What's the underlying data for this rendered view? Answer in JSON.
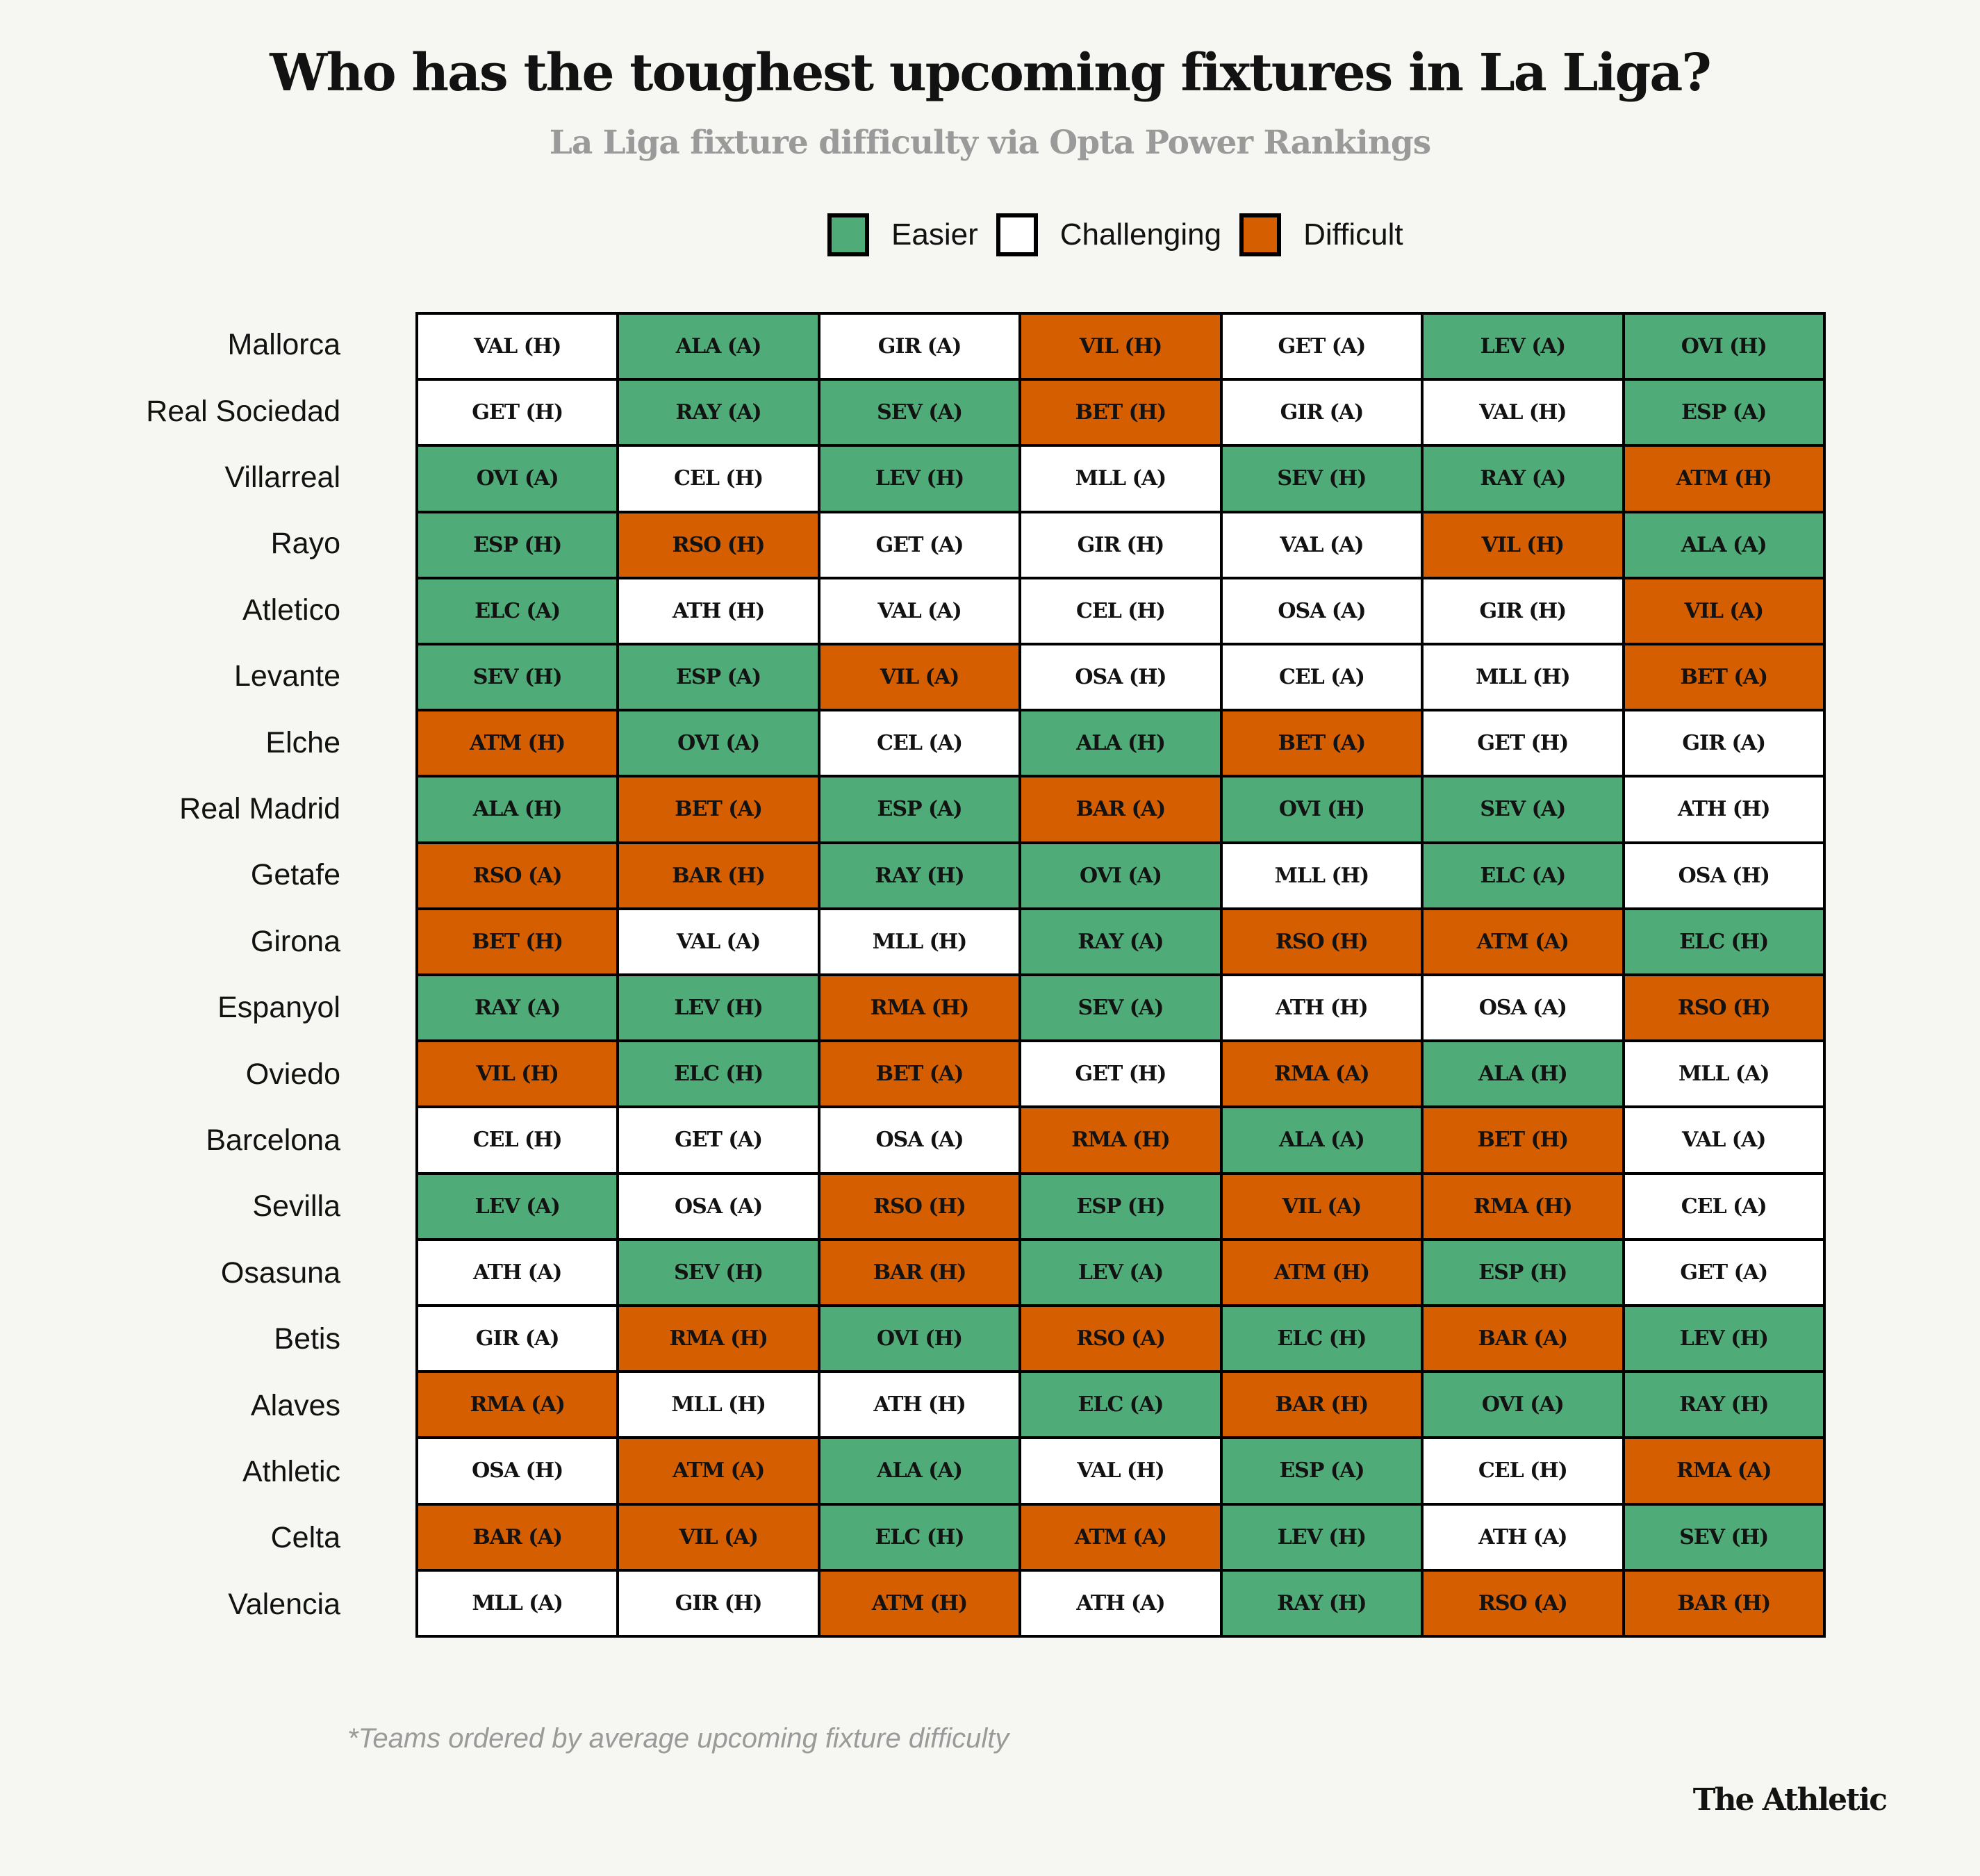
{
  "title": "Who has the toughest upcoming fixtures in La Liga?",
  "subtitle": "La Liga fixture difficulty via Opta Power Rankings",
  "legend": [
    {
      "key": "easy",
      "label": "Easier",
      "color": "#4fac78"
    },
    {
      "key": "chal",
      "label": "Challenging",
      "color": "#ffffff"
    },
    {
      "key": "diff",
      "label": "Difficult",
      "color": "#d45e00"
    }
  ],
  "footnote": "*Teams ordered by average upcoming fixture difficulty",
  "brand": "The Athletic",
  "chart_data": {
    "type": "table",
    "title": "Who has the toughest upcoming fixtures in La Liga?",
    "subtitle": "La Liga fixture difficulty via Opta Power Rankings",
    "legend_placement": "top-center",
    "difficulty_levels": {
      "easy": "Easier",
      "chal": "Challenging",
      "diff": "Difficult"
    },
    "rows": [
      {
        "team": "Mallorca",
        "fixtures": [
          [
            "VAL (H)",
            "chal"
          ],
          [
            "ALA (A)",
            "easy"
          ],
          [
            "GIR (A)",
            "chal"
          ],
          [
            "VIL (H)",
            "diff"
          ],
          [
            "GET (A)",
            "chal"
          ],
          [
            "LEV (A)",
            "easy"
          ],
          [
            "OVI (H)",
            "easy"
          ]
        ]
      },
      {
        "team": "Real Sociedad",
        "fixtures": [
          [
            "GET (H)",
            "chal"
          ],
          [
            "RAY (A)",
            "easy"
          ],
          [
            "SEV (A)",
            "easy"
          ],
          [
            "BET (H)",
            "diff"
          ],
          [
            "GIR (A)",
            "chal"
          ],
          [
            "VAL (H)",
            "chal"
          ],
          [
            "ESP (A)",
            "easy"
          ]
        ]
      },
      {
        "team": "Villarreal",
        "fixtures": [
          [
            "OVI (A)",
            "easy"
          ],
          [
            "CEL (H)",
            "chal"
          ],
          [
            "LEV (H)",
            "easy"
          ],
          [
            "MLL (A)",
            "chal"
          ],
          [
            "SEV (H)",
            "easy"
          ],
          [
            "RAY (A)",
            "easy"
          ],
          [
            "ATM (H)",
            "diff"
          ]
        ]
      },
      {
        "team": "Rayo",
        "fixtures": [
          [
            "ESP (H)",
            "easy"
          ],
          [
            "RSO (H)",
            "diff"
          ],
          [
            "GET (A)",
            "chal"
          ],
          [
            "GIR (H)",
            "chal"
          ],
          [
            "VAL (A)",
            "chal"
          ],
          [
            "VIL (H)",
            "diff"
          ],
          [
            "ALA (A)",
            "easy"
          ]
        ]
      },
      {
        "team": "Atletico",
        "fixtures": [
          [
            "ELC (A)",
            "easy"
          ],
          [
            "ATH (H)",
            "chal"
          ],
          [
            "VAL (A)",
            "chal"
          ],
          [
            "CEL (H)",
            "chal"
          ],
          [
            "OSA (A)",
            "chal"
          ],
          [
            "GIR (H)",
            "chal"
          ],
          [
            "VIL (A)",
            "diff"
          ]
        ]
      },
      {
        "team": "Levante",
        "fixtures": [
          [
            "SEV (H)",
            "easy"
          ],
          [
            "ESP (A)",
            "easy"
          ],
          [
            "VIL (A)",
            "diff"
          ],
          [
            "OSA (H)",
            "chal"
          ],
          [
            "CEL (A)",
            "chal"
          ],
          [
            "MLL (H)",
            "chal"
          ],
          [
            "BET (A)",
            "diff"
          ]
        ]
      },
      {
        "team": "Elche",
        "fixtures": [
          [
            "ATM (H)",
            "diff"
          ],
          [
            "OVI (A)",
            "easy"
          ],
          [
            "CEL (A)",
            "chal"
          ],
          [
            "ALA (H)",
            "easy"
          ],
          [
            "BET (A)",
            "diff"
          ],
          [
            "GET (H)",
            "chal"
          ],
          [
            "GIR (A)",
            "chal"
          ]
        ]
      },
      {
        "team": "Real Madrid",
        "fixtures": [
          [
            "ALA (H)",
            "easy"
          ],
          [
            "BET (A)",
            "diff"
          ],
          [
            "ESP (A)",
            "easy"
          ],
          [
            "BAR (A)",
            "diff"
          ],
          [
            "OVI (H)",
            "easy"
          ],
          [
            "SEV (A)",
            "easy"
          ],
          [
            "ATH (H)",
            "chal"
          ]
        ]
      },
      {
        "team": "Getafe",
        "fixtures": [
          [
            "RSO (A)",
            "diff"
          ],
          [
            "BAR (H)",
            "diff"
          ],
          [
            "RAY (H)",
            "easy"
          ],
          [
            "OVI (A)",
            "easy"
          ],
          [
            "MLL (H)",
            "chal"
          ],
          [
            "ELC (A)",
            "easy"
          ],
          [
            "OSA (H)",
            "chal"
          ]
        ]
      },
      {
        "team": "Girona",
        "fixtures": [
          [
            "BET (H)",
            "diff"
          ],
          [
            "VAL (A)",
            "chal"
          ],
          [
            "MLL (H)",
            "chal"
          ],
          [
            "RAY (A)",
            "easy"
          ],
          [
            "RSO (H)",
            "diff"
          ],
          [
            "ATM (A)",
            "diff"
          ],
          [
            "ELC (H)",
            "easy"
          ]
        ]
      },
      {
        "team": "Espanyol",
        "fixtures": [
          [
            "RAY (A)",
            "easy"
          ],
          [
            "LEV (H)",
            "easy"
          ],
          [
            "RMA (H)",
            "diff"
          ],
          [
            "SEV (A)",
            "easy"
          ],
          [
            "ATH (H)",
            "chal"
          ],
          [
            "OSA (A)",
            "chal"
          ],
          [
            "RSO (H)",
            "diff"
          ]
        ]
      },
      {
        "team": "Oviedo",
        "fixtures": [
          [
            "VIL (H)",
            "diff"
          ],
          [
            "ELC (H)",
            "easy"
          ],
          [
            "BET (A)",
            "diff"
          ],
          [
            "GET (H)",
            "chal"
          ],
          [
            "RMA (A)",
            "diff"
          ],
          [
            "ALA (H)",
            "easy"
          ],
          [
            "MLL (A)",
            "chal"
          ]
        ]
      },
      {
        "team": "Barcelona",
        "fixtures": [
          [
            "CEL (H)",
            "chal"
          ],
          [
            "GET (A)",
            "chal"
          ],
          [
            "OSA (A)",
            "chal"
          ],
          [
            "RMA (H)",
            "diff"
          ],
          [
            "ALA (A)",
            "easy"
          ],
          [
            "BET (H)",
            "diff"
          ],
          [
            "VAL (A)",
            "chal"
          ]
        ]
      },
      {
        "team": "Sevilla",
        "fixtures": [
          [
            "LEV (A)",
            "easy"
          ],
          [
            "OSA (A)",
            "chal"
          ],
          [
            "RSO (H)",
            "diff"
          ],
          [
            "ESP (H)",
            "easy"
          ],
          [
            "VIL (A)",
            "diff"
          ],
          [
            "RMA (H)",
            "diff"
          ],
          [
            "CEL (A)",
            "chal"
          ]
        ]
      },
      {
        "team": "Osasuna",
        "fixtures": [
          [
            "ATH (A)",
            "chal"
          ],
          [
            "SEV (H)",
            "easy"
          ],
          [
            "BAR (H)",
            "diff"
          ],
          [
            "LEV (A)",
            "easy"
          ],
          [
            "ATM (H)",
            "diff"
          ],
          [
            "ESP (H)",
            "easy"
          ],
          [
            "GET (A)",
            "chal"
          ]
        ]
      },
      {
        "team": "Betis",
        "fixtures": [
          [
            "GIR (A)",
            "chal"
          ],
          [
            "RMA (H)",
            "diff"
          ],
          [
            "OVI (H)",
            "easy"
          ],
          [
            "RSO (A)",
            "diff"
          ],
          [
            "ELC (H)",
            "easy"
          ],
          [
            "BAR (A)",
            "diff"
          ],
          [
            "LEV (H)",
            "easy"
          ]
        ]
      },
      {
        "team": "Alaves",
        "fixtures": [
          [
            "RMA (A)",
            "diff"
          ],
          [
            "MLL (H)",
            "chal"
          ],
          [
            "ATH (H)",
            "chal"
          ],
          [
            "ELC (A)",
            "easy"
          ],
          [
            "BAR (H)",
            "diff"
          ],
          [
            "OVI (A)",
            "easy"
          ],
          [
            "RAY (H)",
            "easy"
          ]
        ]
      },
      {
        "team": "Athletic",
        "fixtures": [
          [
            "OSA (H)",
            "chal"
          ],
          [
            "ATM (A)",
            "diff"
          ],
          [
            "ALA (A)",
            "easy"
          ],
          [
            "VAL (H)",
            "chal"
          ],
          [
            "ESP (A)",
            "easy"
          ],
          [
            "CEL (H)",
            "chal"
          ],
          [
            "RMA (A)",
            "diff"
          ]
        ]
      },
      {
        "team": "Celta",
        "fixtures": [
          [
            "BAR (A)",
            "diff"
          ],
          [
            "VIL (A)",
            "diff"
          ],
          [
            "ELC (H)",
            "easy"
          ],
          [
            "ATM (A)",
            "diff"
          ],
          [
            "LEV (H)",
            "easy"
          ],
          [
            "ATH (A)",
            "chal"
          ],
          [
            "SEV (H)",
            "easy"
          ]
        ]
      },
      {
        "team": "Valencia",
        "fixtures": [
          [
            "MLL (A)",
            "chal"
          ],
          [
            "GIR (H)",
            "chal"
          ],
          [
            "ATM (H)",
            "diff"
          ],
          [
            "ATH (A)",
            "chal"
          ],
          [
            "RAY (H)",
            "easy"
          ],
          [
            "RSO (A)",
            "diff"
          ],
          [
            "BAR (H)",
            "diff"
          ]
        ]
      }
    ]
  }
}
